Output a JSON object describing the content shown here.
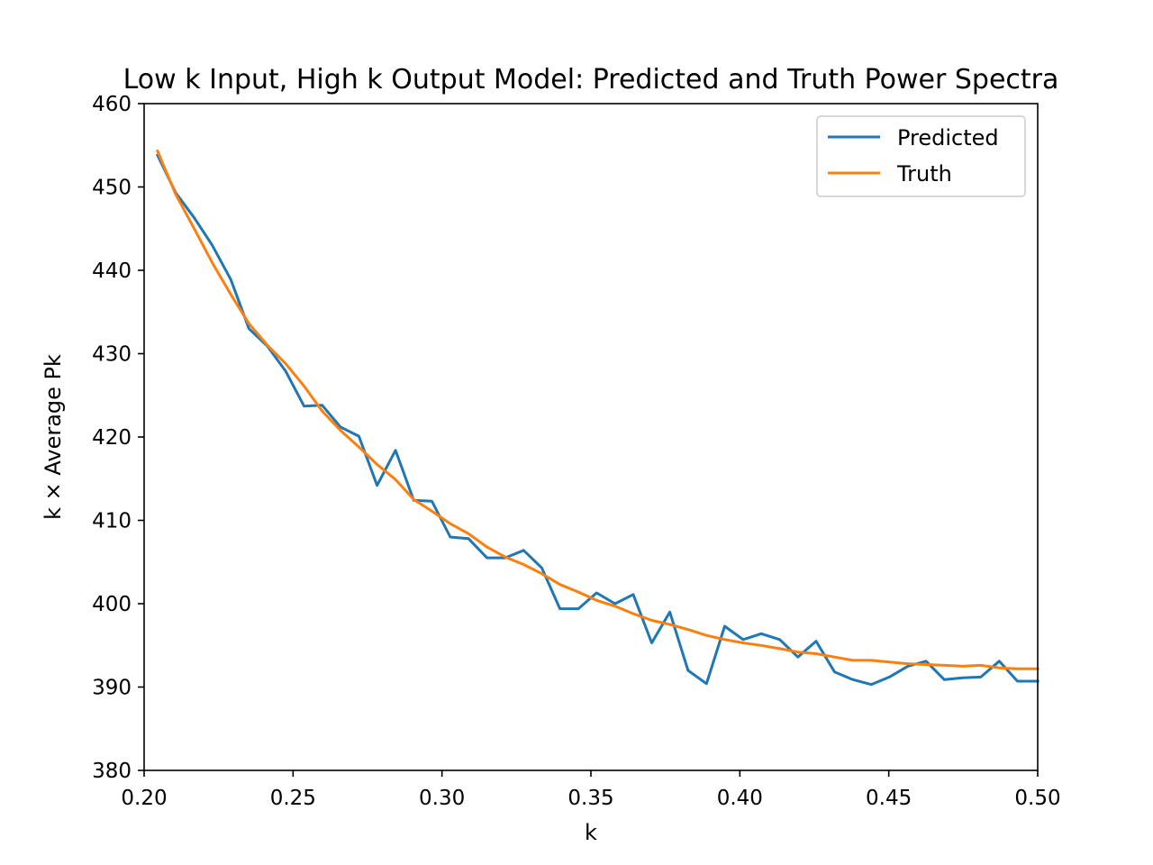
{
  "chart_data": {
    "type": "line",
    "title": "Low k Input, High k Output Model: Predicted and Truth Power Spectra",
    "xlabel": "k",
    "ylabel": "k × Average Pk",
    "xlim": [
      0.2,
      0.5
    ],
    "ylim": [
      380,
      460
    ],
    "x_ticks": [
      "0.20",
      "0.25",
      "0.30",
      "0.35",
      "0.40",
      "0.45",
      "0.50"
    ],
    "y_ticks": [
      "380",
      "390",
      "400",
      "410",
      "420",
      "430",
      "440",
      "450",
      "460"
    ],
    "legend_position": "top-right",
    "grid": false,
    "x": [
      0.2045,
      0.2106,
      0.2168,
      0.2229,
      0.2291,
      0.2352,
      0.2414,
      0.2475,
      0.2537,
      0.2598,
      0.2659,
      0.2721,
      0.2782,
      0.2844,
      0.2905,
      0.2966,
      0.3028,
      0.3089,
      0.3151,
      0.3212,
      0.3274,
      0.3335,
      0.3396,
      0.3458,
      0.3519,
      0.3581,
      0.3642,
      0.3704,
      0.3765,
      0.3826,
      0.3888,
      0.3949,
      0.4011,
      0.4072,
      0.4134,
      0.4195,
      0.4256,
      0.4318,
      0.4379,
      0.4441,
      0.4502,
      0.4564,
      0.4625,
      0.4686,
      0.4748,
      0.4809,
      0.4871,
      0.4932,
      0.5
    ],
    "series": [
      {
        "name": "Predicted",
        "color": "#1f77b4",
        "values": [
          453.8,
          449.3,
          446.3,
          443.0,
          438.9,
          433.0,
          430.9,
          427.9,
          423.7,
          423.8,
          421.2,
          420.1,
          414.2,
          418.4,
          412.4,
          412.3,
          408.0,
          407.8,
          405.5,
          405.5,
          406.4,
          404.3,
          399.4,
          399.4,
          401.3,
          400.0,
          401.1,
          395.3,
          399.0,
          392.0,
          390.4,
          397.3,
          395.7,
          396.4,
          395.7,
          393.6,
          395.5,
          391.8,
          390.9,
          390.3,
          391.2,
          392.5,
          393.1,
          390.9,
          391.1,
          391.2,
          393.1,
          390.7,
          390.7
        ]
      },
      {
        "name": "Truth",
        "color": "#ff7f0e",
        "values": [
          454.3,
          449.1,
          445.0,
          440.9,
          437.1,
          433.6,
          431.0,
          428.8,
          426.1,
          423.1,
          420.8,
          418.8,
          416.7,
          414.9,
          412.5,
          411.1,
          409.6,
          408.4,
          406.8,
          405.6,
          404.7,
          403.6,
          402.3,
          401.4,
          400.4,
          399.7,
          398.8,
          398.0,
          397.5,
          396.9,
          396.2,
          395.7,
          395.3,
          395.0,
          394.6,
          394.2,
          394.0,
          393.6,
          393.2,
          393.2,
          393.0,
          392.8,
          392.7,
          392.6,
          392.5,
          392.6,
          392.3,
          392.2,
          392.2
        ]
      }
    ]
  }
}
